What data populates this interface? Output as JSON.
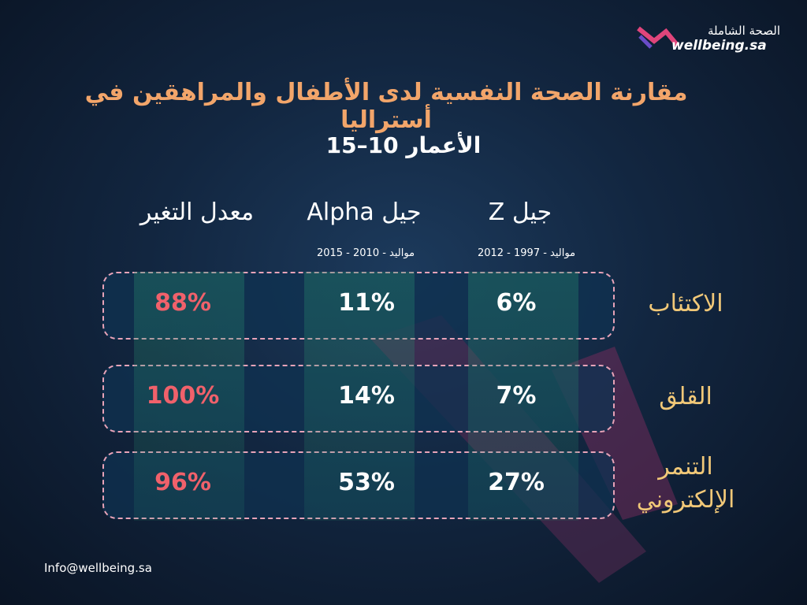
{
  "header": {
    "logo_arabic": "الصحة الشاملة",
    "logo_english": "wellbeing.sa",
    "title": "مقارنة الصحة النفسية لدى الأطفال والمراهقين في أستراليا",
    "subtitle": "الأعمار 10–15"
  },
  "table": {
    "columns": [
      {
        "label": "جيل Z",
        "sublabel": "مواليد - 1997 - 2012"
      },
      {
        "label": "جيل Alpha",
        "sublabel": "مواليد - 2010 - 2015"
      },
      {
        "label": "معدل التغير"
      }
    ],
    "rows": [
      {
        "label": "الاكتئاب",
        "values": [
          "6%",
          "11%",
          "88%"
        ]
      },
      {
        "label": "القلق",
        "values": [
          "7%",
          "14%",
          "100%"
        ]
      },
      {
        "label": "التنمر الإلكتروني",
        "values": [
          "27%",
          "53%",
          "96%"
        ]
      }
    ]
  },
  "footer": {
    "email": "Info@wellbeing.sa"
  }
}
